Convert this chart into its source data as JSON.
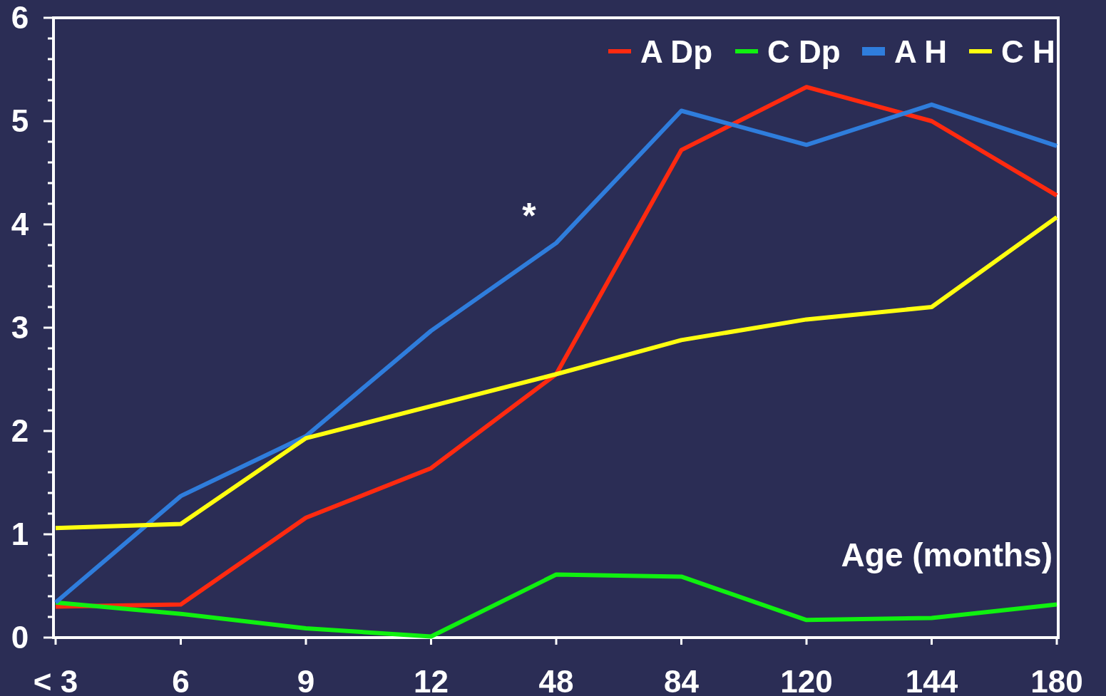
{
  "chart_data": {
    "type": "line",
    "xlabel": "Age (months)",
    "categories": [
      "< 3",
      "6",
      "9",
      "12",
      "48",
      "84",
      "120",
      "144",
      "180"
    ],
    "series": [
      {
        "name": "A Dp",
        "color": "#ff2a10",
        "values": [
          0.3,
          0.32,
          1.16,
          1.64,
          2.55,
          4.72,
          5.33,
          5.0,
          4.28
        ]
      },
      {
        "name": "C Dp",
        "color": "#10f010",
        "values": [
          0.34,
          0.23,
          0.09,
          0.01,
          0.61,
          0.59,
          0.17,
          0.19,
          0.32
        ]
      },
      {
        "name": "A H",
        "color": "#2f7ddc",
        "values": [
          0.34,
          1.37,
          1.95,
          2.97,
          3.82,
          5.1,
          4.77,
          5.16,
          4.76
        ]
      },
      {
        "name": "C H",
        "color": "#ffff10",
        "values": [
          1.06,
          1.1,
          1.93,
          2.24,
          2.55,
          2.88,
          3.08,
          3.2,
          4.07
        ]
      }
    ],
    "ylim": [
      0,
      6
    ],
    "yticks": [
      0,
      {
        "value": 0.2,
        "label": null
      },
      {
        "value": 0.4,
        "label": null
      },
      {
        "value": 0.6,
        "label": null
      },
      {
        "value": 0.8,
        "label": null
      },
      1,
      {
        "value": 1.2,
        "label": null
      },
      {
        "value": 1.4,
        "label": null
      },
      {
        "value": 1.6,
        "label": null
      },
      {
        "value": 1.8,
        "label": null
      },
      2,
      {
        "value": 2.2,
        "label": null
      },
      {
        "value": 2.4,
        "label": null
      },
      {
        "value": 2.6,
        "label": null
      },
      {
        "value": 2.8,
        "label": null
      },
      3,
      {
        "value": 3.2,
        "label": null
      },
      {
        "value": 3.4,
        "label": null
      },
      {
        "value": 3.6,
        "label": null
      },
      {
        "value": 3.8,
        "label": null
      },
      4,
      {
        "value": 4.2,
        "label": null
      },
      {
        "value": 4.4,
        "label": null
      },
      {
        "value": 4.6,
        "label": null
      },
      {
        "value": 4.8,
        "label": null
      },
      5,
      {
        "value": 5.2,
        "label": null
      },
      {
        "value": 5.4,
        "label": null
      },
      {
        "value": 5.6,
        "label": null
      },
      {
        "value": 5.8,
        "label": null
      },
      6
    ],
    "annotations": [
      "*"
    ],
    "legend": "top right",
    "grid": false,
    "line_style": "solid"
  }
}
